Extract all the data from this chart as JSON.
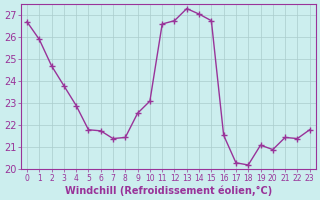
{
  "x": [
    0,
    1,
    2,
    3,
    4,
    5,
    6,
    7,
    8,
    9,
    10,
    11,
    12,
    13,
    14,
    15,
    16,
    17,
    18,
    19,
    20,
    21,
    22,
    23
  ],
  "y": [
    26.7,
    25.9,
    24.7,
    23.8,
    22.9,
    21.8,
    21.75,
    21.4,
    21.45,
    22.55,
    23.1,
    26.6,
    26.75,
    27.3,
    27.05,
    26.75,
    21.55,
    20.3,
    20.2,
    21.1,
    20.9,
    21.45,
    21.4,
    21.8
  ],
  "line_color": "#993399",
  "marker": "+",
  "marker_size": 4,
  "bg_color": "#cceeee",
  "grid_color": "#aacccc",
  "xlabel": "Windchill (Refroidissement éolien,°C)",
  "xlabel_color": "#993399",
  "tick_color": "#993399",
  "ylim": [
    20,
    27.5
  ],
  "yticks": [
    20,
    21,
    22,
    23,
    24,
    25,
    26,
    27
  ],
  "xticks": [
    0,
    1,
    2,
    3,
    4,
    5,
    6,
    7,
    8,
    9,
    10,
    11,
    12,
    13,
    14,
    15,
    16,
    17,
    18,
    19,
    20,
    21,
    22,
    23
  ],
  "spine_color": "#993399",
  "font_size": 7,
  "xlabel_fontsize": 7
}
